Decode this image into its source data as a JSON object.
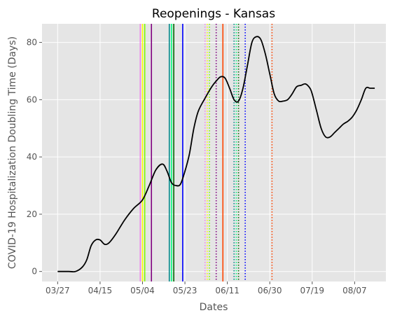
{
  "chart_data": {
    "type": "line",
    "title": "Reopenings - Kansas",
    "xlabel": "Dates",
    "ylabel": "COVID-19 Hospitalization Doubling Time (Days)",
    "x_tick_labels": [
      "03/27",
      "04/15",
      "05/04",
      "05/23",
      "06/11",
      "06/30",
      "07/19",
      "08/07"
    ],
    "x_ticks": [
      "2020-03-27",
      "2020-04-15",
      "2020-05-04",
      "2020-05-23",
      "2020-06-11",
      "2020-06-30",
      "2020-07-19",
      "2020-08-07"
    ],
    "y_ticks": [
      0,
      20,
      40,
      60,
      80
    ],
    "xlim": [
      "2020-03-20",
      "2020-08-21"
    ],
    "ylim": [
      -3.5,
      86.5
    ],
    "grid": true,
    "background": "#e5e5e5",
    "series": [
      {
        "color": "#000000",
        "x": [
          "2020-03-27",
          "2020-04-01",
          "2020-04-04",
          "2020-04-07",
          "2020-04-09",
          "2020-04-11",
          "2020-04-13",
          "2020-04-15",
          "2020-04-17",
          "2020-04-19",
          "2020-04-22",
          "2020-04-26",
          "2020-04-30",
          "2020-05-04",
          "2020-05-07",
          "2020-05-10",
          "2020-05-13",
          "2020-05-15",
          "2020-05-17",
          "2020-05-19",
          "2020-05-21",
          "2020-05-23",
          "2020-05-25",
          "2020-05-27",
          "2020-05-29",
          "2020-06-01",
          "2020-06-04",
          "2020-06-06",
          "2020-06-08",
          "2020-06-10",
          "2020-06-12",
          "2020-06-14",
          "2020-06-16",
          "2020-06-18",
          "2020-06-20",
          "2020-06-22",
          "2020-06-24",
          "2020-06-26",
          "2020-06-28",
          "2020-06-30",
          "2020-07-02",
          "2020-07-04",
          "2020-07-06",
          "2020-07-08",
          "2020-07-10",
          "2020-07-12",
          "2020-07-14",
          "2020-07-16",
          "2020-07-18",
          "2020-07-19",
          "2020-07-21",
          "2020-07-23",
          "2020-07-25",
          "2020-07-27",
          "2020-07-29",
          "2020-07-31",
          "2020-08-02",
          "2020-08-04",
          "2020-08-06",
          "2020-08-08",
          "2020-08-10",
          "2020-08-12",
          "2020-08-14",
          "2020-08-16"
        ],
        "y": [
          0,
          0,
          0,
          1.5,
          4,
          9,
          11,
          11,
          9.5,
          10,
          13,
          18,
          22,
          25,
          30,
          35.5,
          37.5,
          35,
          31,
          30,
          30.5,
          35,
          41,
          50,
          56,
          60.5,
          64.5,
          66.5,
          68,
          67.5,
          64,
          60,
          59.5,
          64,
          72,
          80,
          82,
          81,
          76,
          69,
          62,
          59.5,
          59.5,
          60,
          62,
          64.5,
          65,
          65.5,
          64,
          62,
          56,
          50,
          47,
          47,
          48.5,
          50,
          51.5,
          52.5,
          54,
          56.5,
          60,
          64,
          64,
          64
        ]
      }
    ],
    "vertical_lines": [
      {
        "date": "2020-05-03",
        "color": "#ee82ee",
        "style": "solid"
      },
      {
        "date": "2020-05-04",
        "color": "#ffff00",
        "style": "solid"
      },
      {
        "date": "2020-05-05",
        "color": "#7cfc00",
        "style": "solid"
      },
      {
        "date": "2020-05-08",
        "color": "#800080",
        "style": "solid"
      },
      {
        "date": "2020-05-16",
        "color": "#008b8b",
        "style": "solid"
      },
      {
        "date": "2020-05-17",
        "color": "#00ff7f",
        "style": "solid"
      },
      {
        "date": "2020-05-18",
        "color": "#006400",
        "style": "solid"
      },
      {
        "date": "2020-05-22",
        "color": "#0000ff",
        "style": "solid"
      },
      {
        "date": "2020-06-01",
        "color": "#ee82ee",
        "style": "dotted"
      },
      {
        "date": "2020-06-02",
        "color": "#ffff00",
        "style": "dotted"
      },
      {
        "date": "2020-06-03",
        "color": "#7cfc00",
        "style": "dotted"
      },
      {
        "date": "2020-06-06",
        "color": "#800080",
        "style": "dotted"
      },
      {
        "date": "2020-06-09",
        "color": "#ff4500",
        "style": "solid"
      },
      {
        "date": "2020-06-14",
        "color": "#008b8b",
        "style": "dotted"
      },
      {
        "date": "2020-06-15",
        "color": "#00ff7f",
        "style": "dotted"
      },
      {
        "date": "2020-06-16",
        "color": "#006400",
        "style": "dotted"
      },
      {
        "date": "2020-06-19",
        "color": "#0000ff",
        "style": "dotted"
      },
      {
        "date": "2020-07-01",
        "color": "#ff4500",
        "style": "dotted"
      }
    ]
  }
}
